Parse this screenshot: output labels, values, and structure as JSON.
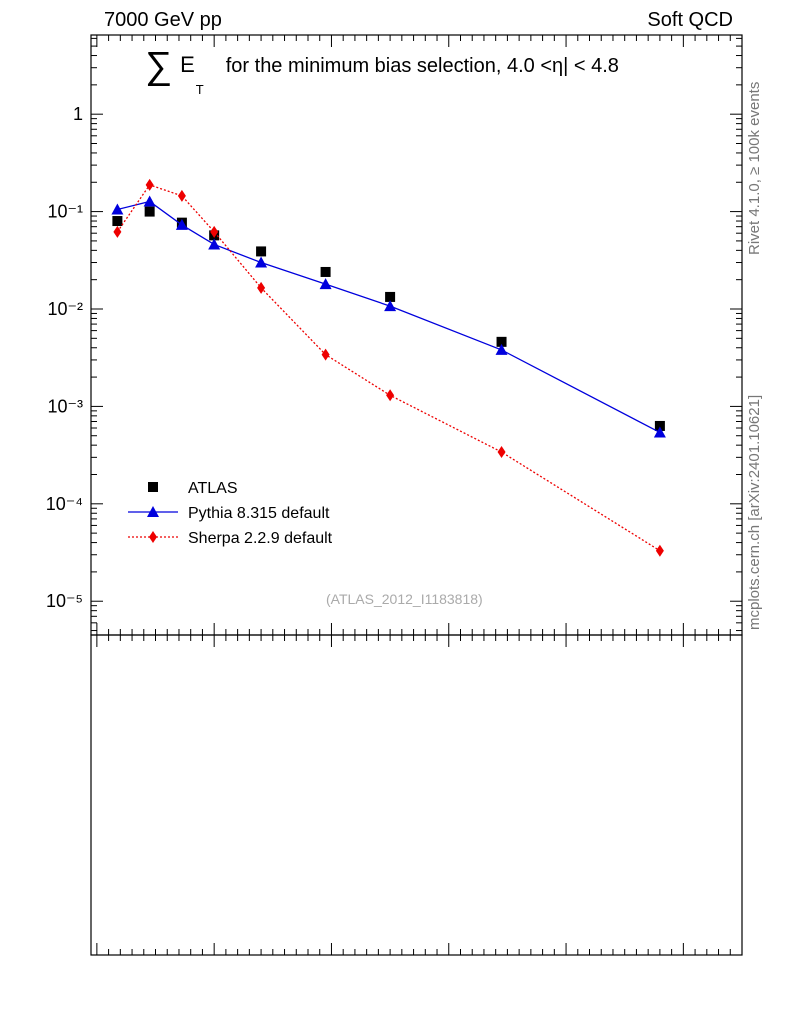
{
  "header": {
    "left": "7000 GeV pp",
    "right": "Soft QCD"
  },
  "side_labels": {
    "rivet": "Rivet 4.1.0, ≥ 100k events",
    "mcplots": "mcplots.cern.ch [arXiv:2401.10621]"
  },
  "title": {
    "sigma": "∑",
    "e": "E",
    "t": "T",
    "text": "for the minimum bias selection, 4.0 <η| < 4.8"
  },
  "watermark": "(ATLAS_2012_I1183818)",
  "chart_data": {
    "type": "scatter",
    "title": "∑ E_T for the minimum bias selection, 4.0 <η| < 4.8",
    "y_scale": "log",
    "ylim": [
      4.5e-06,
      6.5
    ],
    "xlim": [
      -0.5,
      55
    ],
    "y_tick_labels": [
      "1",
      "10⁻¹",
      "10⁻²",
      "10⁻³",
      "10⁻⁴",
      "10⁻⁵"
    ],
    "legend_position": "bottom-left",
    "series": [
      {
        "name": "ATLAS",
        "marker": "square",
        "color": "#000000",
        "x": [
          1.75,
          4.5,
          7.25,
          10,
          14,
          19.5,
          25,
          34.5,
          48
        ],
        "y": [
          0.08,
          0.1,
          0.077,
          0.057,
          0.039,
          0.024,
          0.0133,
          0.0046,
          0.00063
        ]
      },
      {
        "name": "Pythia 8.315 default",
        "marker": "triangle",
        "line": "solid",
        "color": "#0000dd",
        "x": [
          1.75,
          4.5,
          7.25,
          10,
          14,
          19.5,
          25,
          34.5,
          48
        ],
        "y": [
          0.105,
          0.127,
          0.073,
          0.046,
          0.03,
          0.018,
          0.0107,
          0.0038,
          0.00054
        ]
      },
      {
        "name": "Sherpa 2.2.9 default",
        "marker": "diamond",
        "line": "dotted",
        "color": "#ee0000",
        "x": [
          1.75,
          4.5,
          7.25,
          10,
          14,
          19.5,
          25,
          34.5,
          48
        ],
        "y": [
          0.062,
          0.188,
          0.145,
          0.062,
          0.0165,
          0.0034,
          0.0013,
          0.00034,
          3.3e-05
        ]
      }
    ]
  }
}
